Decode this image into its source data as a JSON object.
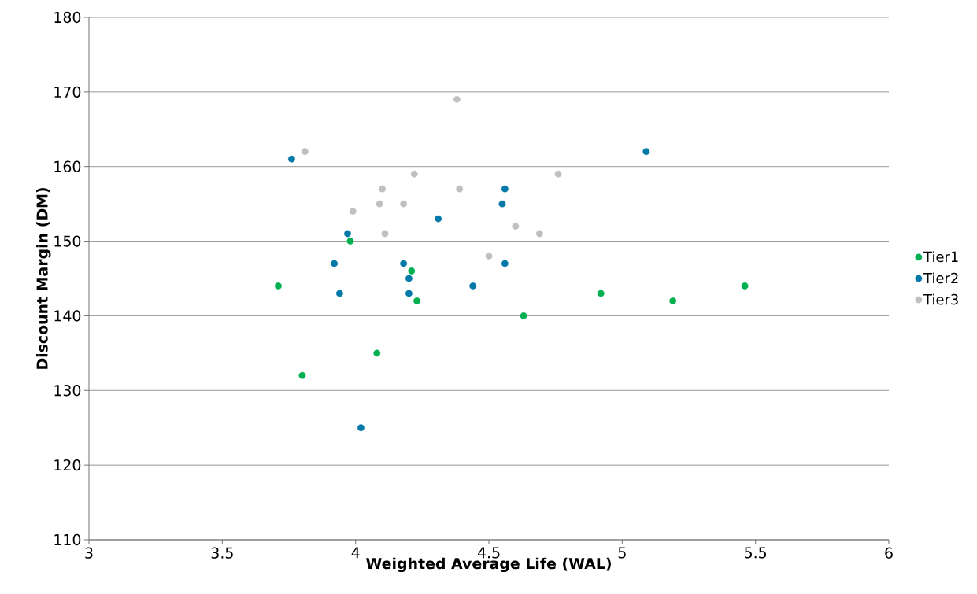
{
  "chart_data": {
    "type": "scatter",
    "xlabel": "Weighted Average Life (WAL)",
    "ylabel": "Discount Margin (DM)",
    "xlim": [
      3,
      6
    ],
    "xticks": [
      3,
      3.5,
      4,
      4.5,
      5,
      5.5,
      6
    ],
    "ylim": [
      110,
      180
    ],
    "yticks": [
      110,
      120,
      130,
      140,
      150,
      160,
      170,
      180
    ],
    "grid": "y",
    "legend": "right",
    "series": [
      {
        "name": "Tier1",
        "color": "#00b050",
        "x": [
          3.71,
          3.8,
          3.98,
          4.08,
          4.21,
          4.23,
          4.63,
          4.92,
          5.19,
          5.46
        ],
        "values": [
          144,
          132,
          150,
          135,
          146,
          142,
          140,
          143,
          142,
          144
        ]
      },
      {
        "name": "Tier2",
        "color": "#0079a8",
        "x": [
          3.76,
          3.92,
          3.94,
          3.97,
          4.02,
          4.18,
          4.2,
          4.2,
          4.31,
          4.44,
          4.55,
          4.56,
          4.56,
          5.09
        ],
        "values": [
          161,
          147,
          143,
          151,
          125,
          147,
          145,
          143,
          153,
          144,
          155,
          157,
          147,
          162
        ]
      },
      {
        "name": "Tier3",
        "color": "#bfbfbf",
        "x": [
          3.81,
          3.99,
          4.09,
          4.1,
          4.11,
          4.18,
          4.22,
          4.38,
          4.39,
          4.5,
          4.6,
          4.69,
          4.76
        ],
        "values": [
          162,
          154,
          155,
          157,
          151,
          155,
          159,
          169,
          157,
          148,
          152,
          151,
          159
        ]
      }
    ]
  }
}
